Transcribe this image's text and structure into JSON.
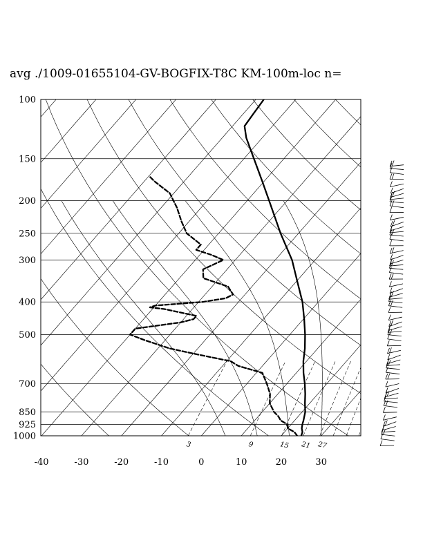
{
  "title": "avg ./1009-01655104-GV-BOGFIX-T8C KM-100m-loc n=",
  "chart_data": {
    "type": "line",
    "chart_kind": "skew-T log-P thermodynamic diagram",
    "title": "avg ./1009-01655104-GV-BOGFIX-T8C KM-100m-loc n=",
    "y_axis": {
      "label": "",
      "scale": "log",
      "ylim": [
        1000,
        100
      ],
      "ticks": [
        100,
        150,
        200,
        250,
        300,
        400,
        500,
        700,
        850,
        925,
        1000
      ]
    },
    "x_axis": {
      "label": "",
      "xlim": [
        -40,
        40
      ],
      "ticks": [
        -40,
        -30,
        -20,
        -10,
        0,
        10,
        20,
        30
      ]
    },
    "mixing_ratio_labels": [
      "3",
      "9",
      "15",
      "21",
      "27"
    ],
    "grid": true,
    "series": [
      {
        "style": "solid",
        "points": [
          [
            1000,
            25
          ],
          [
            975,
            24.5
          ],
          [
            950,
            23.5
          ],
          [
            925,
            22.8
          ],
          [
            900,
            22.2
          ],
          [
            875,
            21.5
          ],
          [
            850,
            20.8
          ],
          [
            800,
            18.8
          ],
          [
            750,
            16.8
          ],
          [
            700,
            14.5
          ],
          [
            650,
            11.8
          ],
          [
            600,
            9.2
          ],
          [
            550,
            6.8
          ],
          [
            500,
            3.8
          ],
          [
            450,
            0.2
          ],
          [
            400,
            -4
          ],
          [
            350,
            -9.5
          ],
          [
            300,
            -15.8
          ],
          [
            250,
            -24.5
          ],
          [
            200,
            -34.5
          ],
          [
            175,
            -40.5
          ],
          [
            150,
            -47.5
          ],
          [
            130,
            -54
          ],
          [
            120,
            -57
          ],
          [
            110,
            -57.5
          ],
          [
            100,
            -58
          ]
        ]
      },
      {
        "style": "dashed",
        "points": [
          [
            1000,
            24
          ],
          [
            975,
            22.5
          ],
          [
            950,
            20
          ],
          [
            925,
            19
          ],
          [
            900,
            16.5
          ],
          [
            875,
            15
          ],
          [
            850,
            13
          ],
          [
            800,
            10
          ],
          [
            750,
            8
          ],
          [
            700,
            5
          ],
          [
            650,
            1.5
          ],
          [
            620,
            -6
          ],
          [
            600,
            -9
          ],
          [
            575,
            -18
          ],
          [
            550,
            -27
          ],
          [
            520,
            -35
          ],
          [
            500,
            -40
          ],
          [
            480,
            -40
          ],
          [
            460,
            -30
          ],
          [
            450,
            -27.5
          ],
          [
            440,
            -27.5
          ],
          [
            420,
            -37
          ],
          [
            415,
            -41
          ],
          [
            410,
            -40
          ],
          [
            400,
            -29
          ],
          [
            390,
            -24
          ],
          [
            380,
            -23
          ],
          [
            360,
            -26
          ],
          [
            340,
            -34
          ],
          [
            320,
            -36
          ],
          [
            300,
            -33
          ],
          [
            290,
            -37
          ],
          [
            280,
            -42
          ],
          [
            270,
            -42
          ],
          [
            250,
            -48
          ],
          [
            230,
            -52
          ],
          [
            210,
            -56
          ],
          [
            190,
            -61
          ],
          [
            175,
            -67.5
          ],
          [
            170,
            -69.5
          ]
        ]
      }
    ],
    "wind_barbs": {
      "count": 60,
      "position": "right",
      "pressure_range": [
        1000,
        155
      ]
    }
  }
}
